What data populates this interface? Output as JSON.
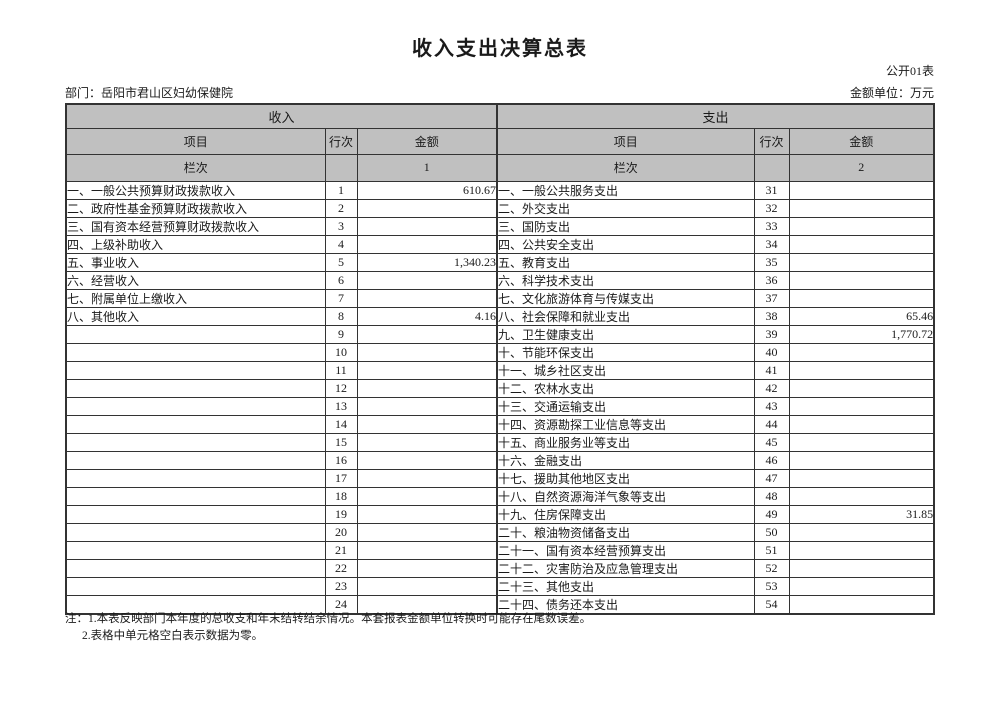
{
  "page": {
    "title": "收入支出决算总表",
    "table_code": "公开01表",
    "department": "部门：岳阳市君山区妇幼保健院",
    "unit": "金额单位：万元"
  },
  "table": {
    "header": {
      "income_title": "收入",
      "expense_title": "支出",
      "item": "项目",
      "line_no": "行次",
      "amount": "金额",
      "column_label": "栏次",
      "income_col_no": "1",
      "expense_col_no": "2"
    },
    "rows": [
      {
        "income_item": "一、一般公共预算财政拨款收入",
        "income_line": "1",
        "income_amount": "610.67",
        "expense_item": "一、一般公共服务支出",
        "expense_line": "31",
        "expense_amount": ""
      },
      {
        "income_item": "二、政府性基金预算财政拨款收入",
        "income_line": "2",
        "income_amount": "",
        "expense_item": "二、外交支出",
        "expense_line": "32",
        "expense_amount": ""
      },
      {
        "income_item": "三、国有资本经营预算财政拨款收入",
        "income_line": "3",
        "income_amount": "",
        "expense_item": "三、国防支出",
        "expense_line": "33",
        "expense_amount": ""
      },
      {
        "income_item": "四、上级补助收入",
        "income_line": "4",
        "income_amount": "",
        "expense_item": "四、公共安全支出",
        "expense_line": "34",
        "expense_amount": ""
      },
      {
        "income_item": "五、事业收入",
        "income_line": "5",
        "income_amount": "1,340.23",
        "expense_item": "五、教育支出",
        "expense_line": "35",
        "expense_amount": ""
      },
      {
        "income_item": "六、经营收入",
        "income_line": "6",
        "income_amount": "",
        "expense_item": "六、科学技术支出",
        "expense_line": "36",
        "expense_amount": ""
      },
      {
        "income_item": "七、附属单位上缴收入",
        "income_line": "7",
        "income_amount": "",
        "expense_item": "七、文化旅游体育与传媒支出",
        "expense_line": "37",
        "expense_amount": ""
      },
      {
        "income_item": "八、其他收入",
        "income_line": "8",
        "income_amount": "4.16",
        "expense_item": "八、社会保障和就业支出",
        "expense_line": "38",
        "expense_amount": "65.46"
      },
      {
        "income_item": "",
        "income_line": "9",
        "income_amount": "",
        "expense_item": "九、卫生健康支出",
        "expense_line": "39",
        "expense_amount": "1,770.72"
      },
      {
        "income_item": "",
        "income_line": "10",
        "income_amount": "",
        "expense_item": "十、节能环保支出",
        "expense_line": "40",
        "expense_amount": ""
      },
      {
        "income_item": "",
        "income_line": "11",
        "income_amount": "",
        "expense_item": "十一、城乡社区支出",
        "expense_line": "41",
        "expense_amount": ""
      },
      {
        "income_item": "",
        "income_line": "12",
        "income_amount": "",
        "expense_item": "十二、农林水支出",
        "expense_line": "42",
        "expense_amount": ""
      },
      {
        "income_item": "",
        "income_line": "13",
        "income_amount": "",
        "expense_item": "十三、交通运输支出",
        "expense_line": "43",
        "expense_amount": ""
      },
      {
        "income_item": "",
        "income_line": "14",
        "income_amount": "",
        "expense_item": "十四、资源勘探工业信息等支出",
        "expense_line": "44",
        "expense_amount": ""
      },
      {
        "income_item": "",
        "income_line": "15",
        "income_amount": "",
        "expense_item": "十五、商业服务业等支出",
        "expense_line": "45",
        "expense_amount": ""
      },
      {
        "income_item": "",
        "income_line": "16",
        "income_amount": "",
        "expense_item": "十六、金融支出",
        "expense_line": "46",
        "expense_amount": ""
      },
      {
        "income_item": "",
        "income_line": "17",
        "income_amount": "",
        "expense_item": "十七、援助其他地区支出",
        "expense_line": "47",
        "expense_amount": ""
      },
      {
        "income_item": "",
        "income_line": "18",
        "income_amount": "",
        "expense_item": "十八、自然资源海洋气象等支出",
        "expense_line": "48",
        "expense_amount": ""
      },
      {
        "income_item": "",
        "income_line": "19",
        "income_amount": "",
        "expense_item": "十九、住房保障支出",
        "expense_line": "49",
        "expense_amount": "31.85"
      },
      {
        "income_item": "",
        "income_line": "20",
        "income_amount": "",
        "expense_item": "二十、粮油物资储备支出",
        "expense_line": "50",
        "expense_amount": ""
      },
      {
        "income_item": "",
        "income_line": "21",
        "income_amount": "",
        "expense_item": "二十一、国有资本经营预算支出",
        "expense_line": "51",
        "expense_amount": ""
      },
      {
        "income_item": "",
        "income_line": "22",
        "income_amount": "",
        "expense_item": "二十二、灾害防治及应急管理支出",
        "expense_line": "52",
        "expense_amount": ""
      },
      {
        "income_item": "",
        "income_line": "23",
        "income_amount": "",
        "expense_item": "二十三、其他支出",
        "expense_line": "53",
        "expense_amount": ""
      },
      {
        "income_item": "",
        "income_line": "24",
        "income_amount": "",
        "expense_item": "二十四、债务还本支出",
        "expense_line": "54",
        "expense_amount": ""
      }
    ]
  },
  "notes": [
    "注：1.本表反映部门本年度的总收支和年末结转结余情况。本套报表金额单位转换时可能存在尾数误差。",
    "2.表格中单元格空白表示数据为零。"
  ],
  "colors": {
    "header_bg": "#c0c0c0",
    "border": "#333333",
    "text": "#1a1a1a"
  }
}
